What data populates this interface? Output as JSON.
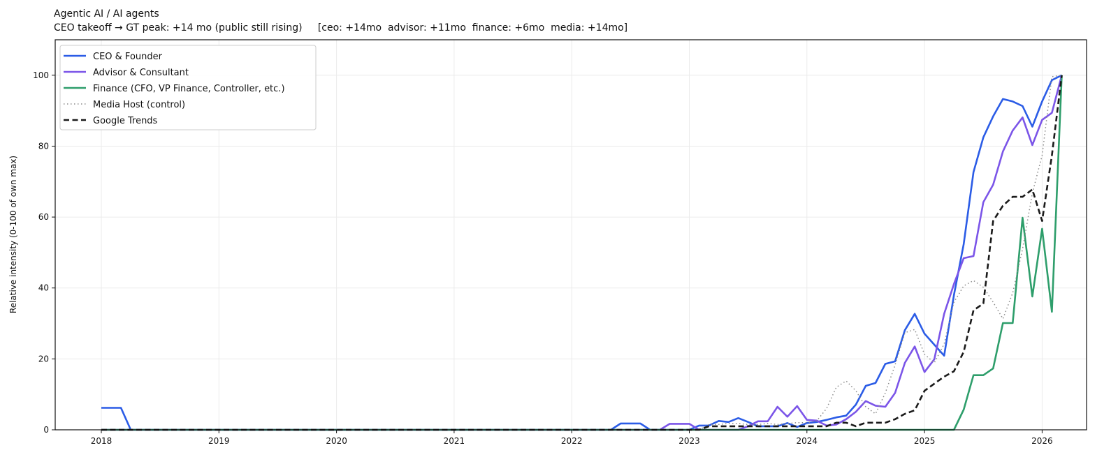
{
  "chart_data": {
    "type": "line",
    "title": "Agentic AI / AI agents",
    "subtitle": "CEO takeoff → GT peak: +14 mo (public still rising)     [ceo: +14mo  advisor: +11mo  finance: +6mo  media: +14mo]",
    "xlabel": "",
    "ylabel": "Relative intensity (0-100 of own max)",
    "xlim": [
      "2017-08",
      "2026-05"
    ],
    "ylim": [
      0,
      110
    ],
    "x_ticks": [
      "2018",
      "2019",
      "2020",
      "2021",
      "2022",
      "2023",
      "2024",
      "2025",
      "2026"
    ],
    "y_ticks": [
      0,
      20,
      40,
      60,
      80,
      100
    ],
    "grid": true,
    "legend_position": "top-left",
    "x_start": "2018-01",
    "x_frequency": "monthly",
    "x_end": "2026-03",
    "series": [
      {
        "name": "CEO & Founder",
        "color": "#2b5ce6",
        "style": "solid",
        "values": [
          6.2,
          6.2,
          6.2,
          0,
          0,
          0,
          0,
          0,
          0,
          0,
          0,
          0,
          0,
          0,
          0,
          0,
          0,
          0,
          0,
          0,
          0,
          0,
          0,
          0,
          0,
          0,
          0,
          0,
          0,
          0,
          0,
          0,
          0,
          0,
          0,
          0,
          0,
          0,
          0,
          0,
          0,
          0,
          0,
          0,
          0,
          0,
          0,
          0,
          0,
          0,
          0,
          0,
          0,
          1.8,
          1.8,
          1.8,
          0,
          0,
          0,
          0,
          0,
          1.2,
          1.2,
          2.5,
          2.2,
          3.3,
          2.2,
          1,
          1,
          1,
          1.9,
          0.8,
          1.9,
          2.2,
          2.8,
          3.5,
          4,
          7.1,
          12.4,
          13.2,
          18.6,
          19.3,
          28.1,
          32.7,
          27.1,
          24,
          20.9,
          38,
          52.4,
          72.7,
          82.5,
          88.4,
          93.3,
          92.6,
          91.3,
          85.5,
          92.6,
          98.6,
          100
        ]
      },
      {
        "name": "Advisor & Consultant",
        "color": "#7b55e8",
        "style": "solid",
        "values": [
          0,
          0,
          0,
          0,
          0,
          0,
          0,
          0,
          0,
          0,
          0,
          0,
          0,
          0,
          0,
          0,
          0,
          0,
          0,
          0,
          0,
          0,
          0,
          0,
          0,
          0,
          0,
          0,
          0,
          0,
          0,
          0,
          0,
          0,
          0,
          0,
          0,
          0,
          0,
          0,
          0,
          0,
          0,
          0,
          0,
          0,
          0,
          0,
          0,
          0,
          0,
          0,
          0,
          0,
          0,
          0,
          0,
          0,
          1.7,
          1.7,
          1.7,
          0,
          0,
          0,
          0,
          0,
          1,
          2.4,
          2.4,
          6.5,
          3.7,
          6.7,
          2.8,
          2.6,
          1.2,
          1.5,
          3,
          5.1,
          8.1,
          6.8,
          6.5,
          10.4,
          18.9,
          23.5,
          16.3,
          19.9,
          32.7,
          41.1,
          48.4,
          49,
          64.2,
          69.1,
          78.5,
          84.4,
          88.1,
          80.3,
          87.4,
          89.4,
          100
        ]
      },
      {
        "name": "Finance (CFO, VP Finance, Controller, etc.)",
        "color": "#2e9e6b",
        "style": "solid",
        "values": [
          0,
          0,
          0,
          0,
          0,
          0,
          0,
          0,
          0,
          0,
          0,
          0,
          0,
          0,
          0,
          0,
          0,
          0,
          0,
          0,
          0,
          0,
          0,
          0,
          0,
          0,
          0,
          0,
          0,
          0,
          0,
          0,
          0,
          0,
          0,
          0,
          0,
          0,
          0,
          0,
          0,
          0,
          0,
          0,
          0,
          0,
          0,
          0,
          0,
          0,
          0,
          0,
          0,
          0,
          0,
          0,
          0,
          0,
          0,
          0,
          0,
          0,
          0,
          0,
          0,
          0,
          0,
          0,
          0,
          0,
          0,
          0,
          0,
          0,
          0,
          0,
          0,
          0,
          0,
          0,
          0,
          0,
          0,
          0,
          0,
          0,
          0,
          0,
          5.7,
          15.4,
          15.4,
          17.3,
          30.1,
          30.1,
          59.8,
          37.6,
          56.7,
          33.3,
          100
        ]
      },
      {
        "name": "Media Host (control)",
        "color": "#8a8a8a",
        "style": "dotted",
        "values": [
          0,
          0,
          0,
          0,
          0,
          0,
          0,
          0,
          0,
          0,
          0,
          0,
          0,
          0,
          0,
          0,
          0,
          0,
          0,
          0,
          0,
          0,
          0,
          0,
          0,
          0,
          0,
          0,
          0,
          0,
          0,
          0,
          0,
          0,
          0,
          0,
          0,
          0,
          0,
          0,
          0,
          0,
          0,
          0,
          0,
          0,
          0,
          0,
          0,
          0,
          0,
          0,
          0,
          0,
          0,
          0,
          0,
          0,
          0,
          0,
          0,
          0,
          1.5,
          1.5,
          1.8,
          1.8,
          1.5,
          1.5,
          1.8,
          1.5,
          1.8,
          2,
          2,
          2.5,
          6,
          12,
          13.8,
          11,
          6.5,
          4.5,
          10.4,
          18.3,
          27.4,
          28.3,
          21.3,
          18.9,
          24.2,
          36,
          40.6,
          42.1,
          40.2,
          36,
          31.3,
          38.6,
          51,
          66.7,
          77.4,
          99.6,
          100
        ]
      },
      {
        "name": "Google Trends",
        "color": "#1a1a1a",
        "style": "dashed",
        "values": [
          0,
          0,
          0,
          0,
          0,
          0,
          0,
          0,
          0,
          0,
          0,
          0,
          0,
          0,
          0,
          0,
          0,
          0,
          0,
          0,
          0,
          0,
          0,
          0,
          0,
          0,
          0,
          0,
          0,
          0,
          0,
          0,
          0,
          0,
          0,
          0,
          0,
          0,
          0,
          0,
          0,
          0,
          0,
          0,
          0,
          0,
          0,
          0,
          0,
          0,
          0,
          0,
          0,
          0,
          0,
          0,
          0,
          0,
          0,
          0,
          0,
          0,
          1,
          1,
          1,
          1,
          1,
          1,
          1,
          1,
          1,
          1,
          1,
          1,
          1,
          2,
          2,
          1,
          2,
          2,
          2,
          3,
          4.5,
          5.5,
          11,
          13,
          15,
          16.5,
          22,
          33.7,
          35.6,
          58.9,
          63.2,
          65.7,
          65.7,
          67.8,
          58.9,
          77.4,
          100
        ]
      }
    ]
  }
}
